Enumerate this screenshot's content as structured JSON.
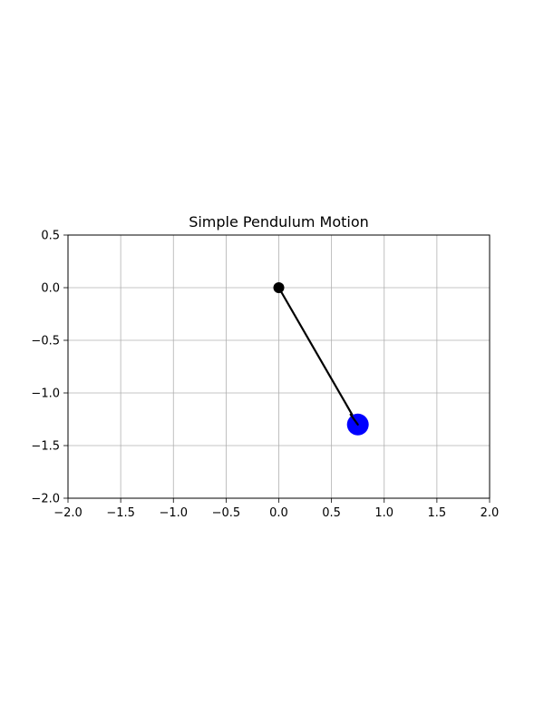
{
  "chart_data": {
    "type": "line",
    "title": "Simple Pendulum Motion",
    "xlabel": "",
    "ylabel": "",
    "xlim": [
      -2.0,
      2.0
    ],
    "ylim": [
      -2.0,
      0.5
    ],
    "x_ticks": [
      -2.0,
      -1.5,
      -1.0,
      -0.5,
      0.0,
      0.5,
      1.0,
      1.5,
      2.0
    ],
    "x_tick_labels": [
      "−2.0",
      "−1.5",
      "−1.0",
      "−0.5",
      "0.0",
      "0.5",
      "1.0",
      "1.5",
      "2.0"
    ],
    "y_ticks": [
      0.5,
      0.0,
      -0.5,
      -1.0,
      -1.5,
      -2.0
    ],
    "y_tick_labels": [
      "0.5",
      "0.0",
      "−0.5",
      "−1.0",
      "−1.5",
      "−2.0"
    ],
    "grid": true,
    "legend": false,
    "series": [
      {
        "x": [
          0.0,
          0.75
        ],
        "y": [
          0.0,
          -1.3
        ]
      }
    ],
    "pivot": {
      "x": 0.0,
      "y": 0.0,
      "color": "#000000"
    },
    "bob": {
      "x": 0.75,
      "y": -1.3,
      "color": "#0000ff"
    },
    "rod_color": "#000000",
    "grid_color": "#b0b0b0"
  }
}
